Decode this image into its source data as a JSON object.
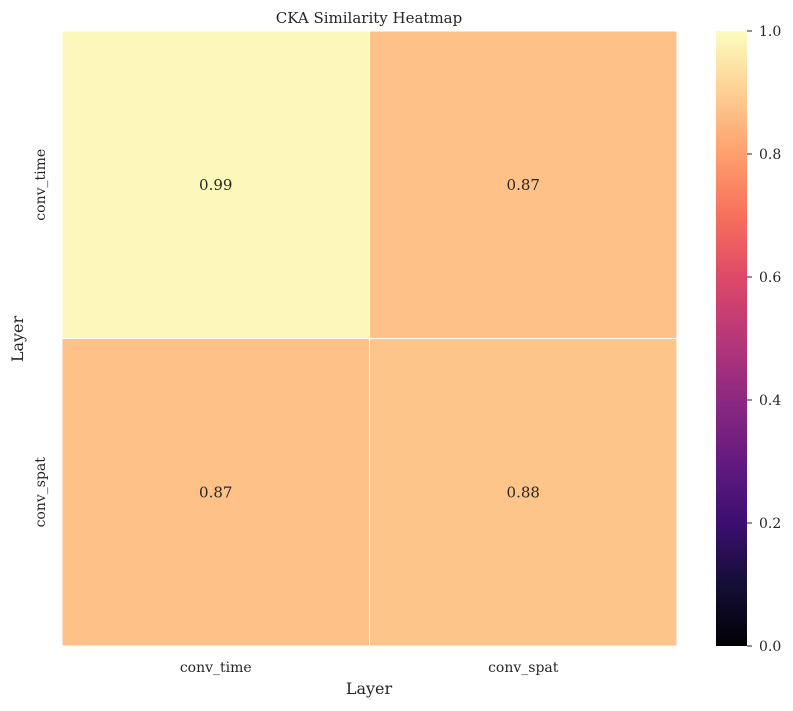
{
  "chart_data": {
    "type": "heatmap",
    "title": "CKA Similarity Heatmap",
    "xlabel": "Layer",
    "ylabel": "Layer",
    "x_categories": [
      "conv_time",
      "conv_spat"
    ],
    "y_categories": [
      "conv_time",
      "conv_spat"
    ],
    "values": [
      [
        0.99,
        0.87
      ],
      [
        0.87,
        0.88
      ]
    ],
    "value_labels": [
      [
        "0.99",
        "0.87"
      ],
      [
        "0.87",
        "0.88"
      ]
    ],
    "colormap": "magma",
    "vmin": 0.0,
    "vmax": 1.0,
    "colorbar_ticks": [
      0.0,
      0.2,
      0.4,
      0.6,
      0.8,
      1.0
    ],
    "colorbar_tick_labels": [
      "0.0",
      "0.2",
      "0.4",
      "0.6",
      "0.8",
      "1.0"
    ],
    "cell_border_color": "#ffffff",
    "grid": false
  }
}
